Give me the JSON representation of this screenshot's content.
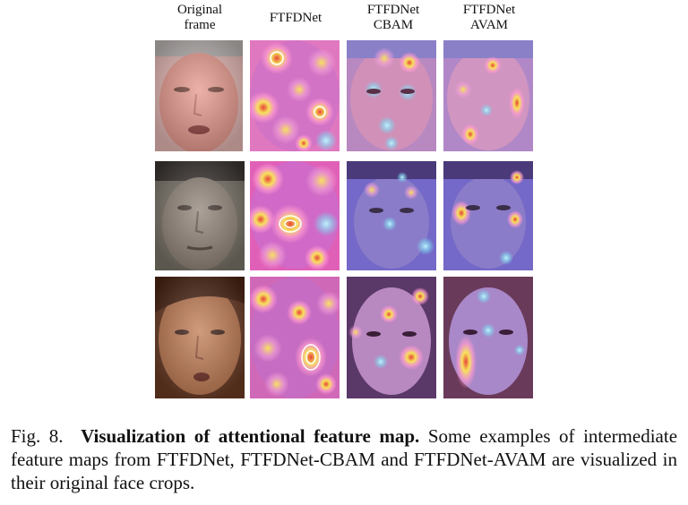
{
  "columns": [
    {
      "line1": "Original",
      "line2": "frame"
    },
    {
      "line1": "FTFDNet",
      "line2": ""
    },
    {
      "line1": "FTFDNet",
      "line2": "CBAM"
    },
    {
      "line1": "FTFDNet",
      "line2": "AVAM"
    }
  ],
  "rows": [
    {
      "subject": "young man with cap"
    },
    {
      "subject": "man with dark hair"
    },
    {
      "subject": "woman with brown hair"
    }
  ],
  "caption": {
    "label": "Fig. 8.",
    "title": "Visualization of attentional feature map.",
    "body": "Some examples of intermediate feature maps from FTFDNet, FTFDNet-CBAM and FTFDNet-AVAM are visualized in their original face crops."
  },
  "colors": {
    "skin_row1": "#e8a49a",
    "skin_row2": "#8a7a70",
    "skin_row3": "#b5704a",
    "heat_cold": "#6a68d8",
    "heat_warm": "#f7e25a",
    "heat_hot": "#e8443a",
    "heat_mid": "#c870c8"
  }
}
